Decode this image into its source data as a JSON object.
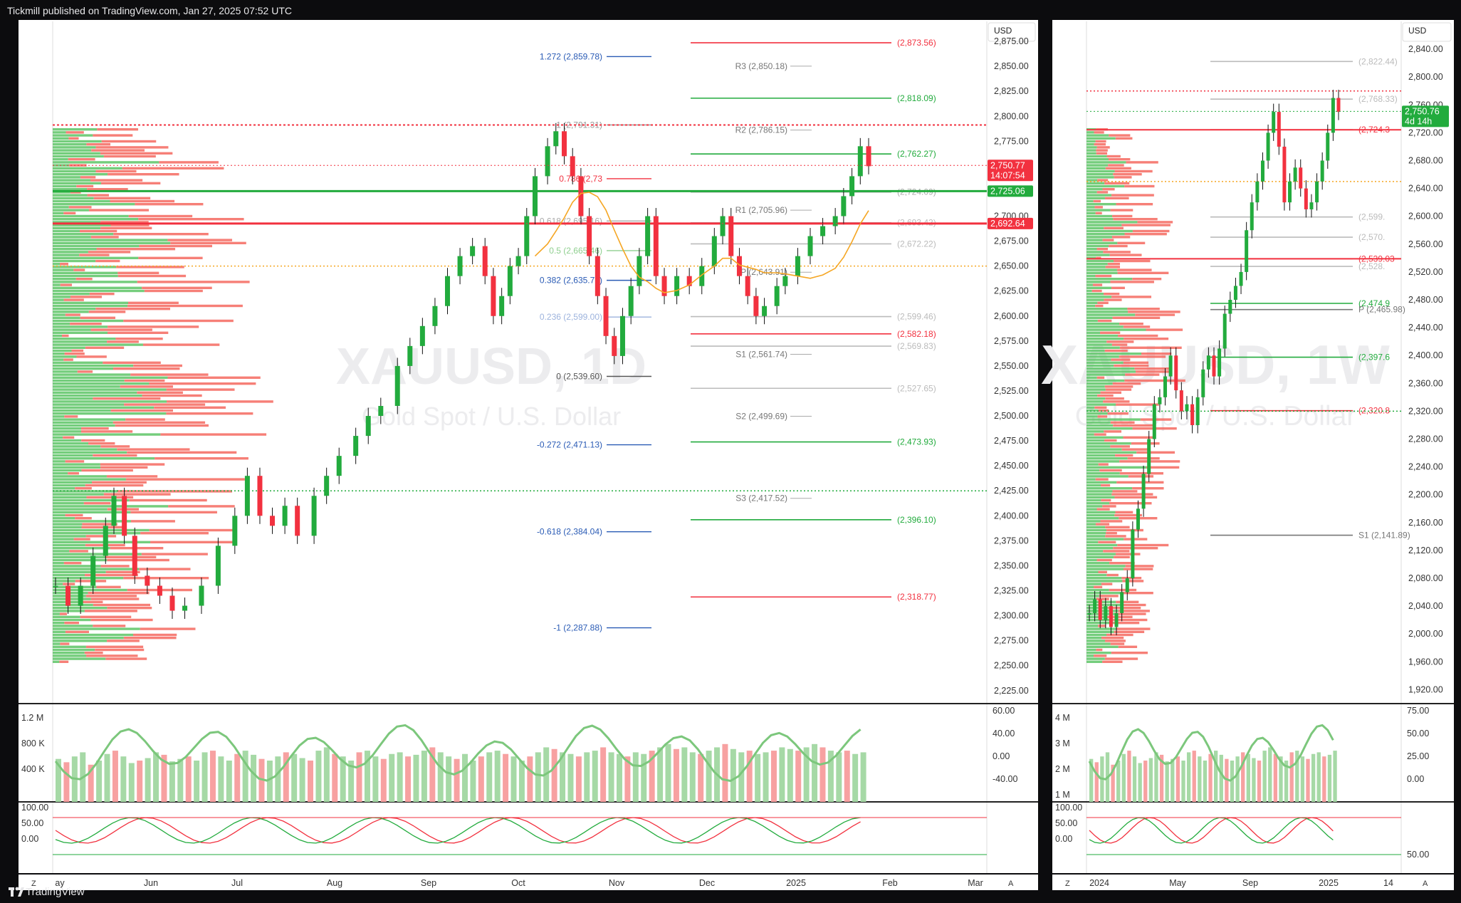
{
  "header": {
    "published": "Tickmill published on TradingView.com, Jan 27, 2025 07:52 UTC"
  },
  "footer": {
    "brand": "TradingView"
  },
  "colors": {
    "up": "#22ab3d",
    "down": "#f2313f",
    "fib": "#2a5bb5",
    "pivot": "#777777",
    "ma": "#f5a623"
  },
  "chart_data": [
    {
      "type": "line",
      "name": "left-daily",
      "watermark": {
        "symbol": "XAUUSD, 1D",
        "desc": "Gold Spot / U.S. Dollar"
      },
      "currency": "USD",
      "ylim": [
        2212,
        2895
      ],
      "y_ticks": [
        "2,875.00",
        "2,850.00",
        "2,825.00",
        "2,800.00",
        "2,775.00",
        "2,750.00",
        "2,725.00",
        "2,700.00",
        "2,675.00",
        "2,650.00",
        "2,625.00",
        "2,600.00",
        "2,575.00",
        "2,550.00",
        "2,525.00",
        "2,500.00",
        "2,475.00",
        "2,450.00",
        "2,425.00",
        "2,400.00",
        "2,375.00",
        "2,350.00",
        "2,325.00",
        "2,300.00",
        "2,275.00",
        "2,250.00",
        "2,225.00"
      ],
      "x_ticks": [
        "ay",
        "Jun",
        "Jul",
        "Aug",
        "Sep",
        "Oct",
        "Nov",
        "Dec",
        "2025",
        "Feb",
        "Mar"
      ],
      "price_tags": [
        {
          "label": "2,750.77",
          "sub": "14:07:54",
          "value": 2750.77,
          "color": "#f2313f"
        },
        {
          "label": "2,725.06",
          "value": 2725.06,
          "color": "#22ab3d"
        },
        {
          "label": "2,692.64",
          "value": 2692.64,
          "color": "#f2313f"
        }
      ],
      "fib_levels": [
        {
          "label": "1.272 (2,859.78)",
          "value": 2859.78,
          "color": "#2a5bb5"
        },
        {
          "label": "1 (2,791.31)",
          "value": 2791.31,
          "color": "#999999"
        },
        {
          "label": "0.786 (2,73",
          "value": 2737.5,
          "color": "#f2313f"
        },
        {
          "label": "0.618 (2,695.16)",
          "value": 2695.16,
          "color": "#aaaaaa"
        },
        {
          "label": "0.5 (2,665.46)",
          "value": 2665.46,
          "color": "#8fcf8f"
        },
        {
          "label": "0.382 (2,635.75)",
          "value": 2635.75,
          "color": "#2a5bb5"
        },
        {
          "label": "0.236 (2,599.00)",
          "value": 2599.0,
          "color": "#9db3dd"
        },
        {
          "label": "0 (2,539.60)",
          "value": 2539.6,
          "color": "#555555"
        },
        {
          "label": "-0.272 (2,471.13)",
          "value": 2471.13,
          "color": "#2a5bb5"
        },
        {
          "label": "-0.618 (2,384.04)",
          "value": 2384.04,
          "color": "#2a5bb5"
        },
        {
          "label": "-1 (2,287.88)",
          "value": 2287.88,
          "color": "#2a5bb5"
        }
      ],
      "pivots": [
        {
          "label": "R3 (2,850.18)",
          "value": 2850.18
        },
        {
          "label": "R2 (2,786.15)",
          "value": 2786.15
        },
        {
          "label": "R1 (2,705.96)",
          "value": 2705.96
        },
        {
          "label": "P (2,643.91)",
          "value": 2643.91
        },
        {
          "label": "S1 (2,561.74)",
          "value": 2561.74
        },
        {
          "label": "S2 (2,499.69)",
          "value": 2499.69
        },
        {
          "label": "S3 (2,417.52)",
          "value": 2417.52
        }
      ],
      "right_levels": [
        {
          "label": "(2,873.56)",
          "value": 2873.56,
          "color": "#f2313f"
        },
        {
          "label": "(2,818.09)",
          "value": 2818.09,
          "color": "#22ab3d"
        },
        {
          "label": "(2,762.27)",
          "value": 2762.27,
          "color": "#22ab3d"
        },
        {
          "label": "(2,724.09)",
          "value": 2724.09,
          "color": "#aaaaaa"
        },
        {
          "label": "(2,693.42)",
          "value": 2693.42,
          "color": "#bbbbbb"
        },
        {
          "label": "(2,672.22)",
          "value": 2672.22,
          "color": "#bbbbbb"
        },
        {
          "label": "(2,599.46)",
          "value": 2599.46,
          "color": "#bbbbbb"
        },
        {
          "label": "(2,582.18)",
          "value": 2582.18,
          "color": "#f2313f"
        },
        {
          "label": "(2,569.83)",
          "value": 2569.83,
          "color": "#bbbbbb"
        },
        {
          "label": "(2,527.65)",
          "value": 2527.65,
          "color": "#bbbbbb"
        },
        {
          "label": "(2,473.93)",
          "value": 2473.93,
          "color": "#22ab3d"
        },
        {
          "label": "(2,396.10)",
          "value": 2396.1,
          "color": "#22ab3d"
        },
        {
          "label": "(2,318.77)",
          "value": 2318.77,
          "color": "#f2313f"
        }
      ],
      "close_path": [
        [
          0,
          2330
        ],
        [
          6,
          2310
        ],
        [
          12,
          2330
        ],
        [
          18,
          2360
        ],
        [
          24,
          2390
        ],
        [
          28,
          2420
        ],
        [
          33,
          2380
        ],
        [
          38,
          2340
        ],
        [
          44,
          2330
        ],
        [
          50,
          2320
        ],
        [
          56,
          2305
        ],
        [
          62,
          2310
        ],
        [
          70,
          2330
        ],
        [
          78,
          2370
        ],
        [
          86,
          2400
        ],
        [
          92,
          2440
        ],
        [
          98,
          2400
        ],
        [
          104,
          2390
        ],
        [
          110,
          2410
        ],
        [
          116,
          2380
        ],
        [
          124,
          2420
        ],
        [
          130,
          2440
        ],
        [
          136,
          2460
        ],
        [
          144,
          2480
        ],
        [
          150,
          2500
        ],
        [
          156,
          2510
        ],
        [
          164,
          2550
        ],
        [
          170,
          2570
        ],
        [
          176,
          2590
        ],
        [
          182,
          2610
        ],
        [
          188,
          2640
        ],
        [
          194,
          2660
        ],
        [
          200,
          2670
        ],
        [
          206,
          2640
        ],
        [
          210,
          2600
        ],
        [
          214,
          2620
        ],
        [
          218,
          2650
        ],
        [
          222,
          2660
        ],
        [
          226,
          2700
        ],
        [
          230,
          2740
        ],
        [
          236,
          2770
        ],
        [
          240,
          2785
        ],
        [
          244,
          2760
        ],
        [
          248,
          2740
        ],
        [
          252,
          2700
        ],
        [
          256,
          2660
        ],
        [
          260,
          2620
        ],
        [
          264,
          2580
        ],
        [
          268,
          2560
        ],
        [
          272,
          2600
        ],
        [
          276,
          2630
        ],
        [
          280,
          2660
        ],
        [
          284,
          2700
        ],
        [
          288,
          2640
        ],
        [
          292,
          2620
        ],
        [
          298,
          2640
        ],
        [
          304,
          2630
        ],
        [
          310,
          2650
        ],
        [
          316,
          2680
        ],
        [
          320,
          2700
        ],
        [
          324,
          2660
        ],
        [
          328,
          2640
        ],
        [
          332,
          2620
        ],
        [
          336,
          2600
        ],
        [
          340,
          2610
        ],
        [
          346,
          2630
        ],
        [
          350,
          2640
        ],
        [
          356,
          2660
        ],
        [
          362,
          2680
        ],
        [
          368,
          2690
        ],
        [
          374,
          2700
        ],
        [
          378,
          2720
        ],
        [
          382,
          2740
        ],
        [
          386,
          2770
        ],
        [
          390,
          2750
        ]
      ],
      "volume": [
        0.52,
        0.48,
        0.55,
        0.6,
        0.45,
        0.5,
        0.58,
        0.62,
        0.55,
        0.47,
        0.5,
        0.53,
        0.6,
        0.57,
        0.49,
        0.52,
        0.55,
        0.5,
        0.6,
        0.62,
        0.55,
        0.5,
        0.58,
        0.62,
        0.57,
        0.52,
        0.5,
        0.55,
        0.6,
        0.58,
        0.53,
        0.5,
        0.62,
        0.66,
        0.58,
        0.55,
        0.5,
        0.6,
        0.62,
        0.55,
        0.52,
        0.58,
        0.6,
        0.55,
        0.57,
        0.62,
        0.66,
        0.6,
        0.55,
        0.52,
        0.58,
        0.5,
        0.55,
        0.6,
        0.62,
        0.58,
        0.55,
        0.5,
        0.55,
        0.6,
        0.66,
        0.64,
        0.6,
        0.58,
        0.55,
        0.6,
        0.62,
        0.66,
        0.6,
        0.58,
        0.55,
        0.6,
        0.58,
        0.62,
        0.66,
        0.7,
        0.64,
        0.66,
        0.6,
        0.58,
        0.62,
        0.66,
        0.7,
        0.64,
        0.6,
        0.62,
        0.58,
        0.6,
        0.62,
        0.66,
        0.64,
        0.62,
        0.66,
        0.7,
        0.66,
        0.62,
        0.6,
        0.62,
        0.58,
        0.6
      ],
      "volume_axis": [
        "1.2 M",
        "800 K",
        "400 K"
      ],
      "osc_axis": [
        "60.00",
        "40.00",
        "0.00",
        "-40.00"
      ],
      "stoch_axis": [
        "100.00",
        "50.00",
        "0.00"
      ]
    },
    {
      "type": "line",
      "name": "right-weekly",
      "watermark": {
        "symbol": "XAUUSD, 1W",
        "desc": "Gold Spot / U.S. Dollar"
      },
      "currency": "USD",
      "ylim": [
        1900,
        2880
      ],
      "y_ticks": [
        "2,840.00",
        "2,800.00",
        "2,760.00",
        "2,720.00",
        "2,680.00",
        "2,640.00",
        "2,600.00",
        "2,560.00",
        "2,520.00",
        "2,480.00",
        "2,440.00",
        "2,400.00",
        "2,360.00",
        "2,320.00",
        "2,280.00",
        "2,240.00",
        "2,200.00",
        "2,160.00",
        "2,120.00",
        "2,080.00",
        "2,040.00",
        "2,000.00",
        "1,960.00",
        "1,920.00"
      ],
      "x_ticks": [
        "2024",
        "May",
        "Sep",
        "2025",
        "14"
      ],
      "price_tags": [
        {
          "label": "2,750.76",
          "sub": "4d 14h",
          "value": 2750.76,
          "color": "#22ab3d"
        }
      ],
      "levels": [
        {
          "label": "(2,822.44)",
          "value": 2822.44,
          "color": "#bbbbbb"
        },
        {
          "label": "(2,768.33)",
          "value": 2768.33,
          "color": "#bbbbbb"
        },
        {
          "label": "(2,724.3",
          "value": 2724.3,
          "color": "#f2313f"
        },
        {
          "label": "(2,599.",
          "value": 2599.0,
          "color": "#bbbbbb"
        },
        {
          "label": "(2,570.",
          "value": 2570.0,
          "color": "#bbbbbb"
        },
        {
          "label": "(2,539.03",
          "value": 2539.03,
          "color": "#f2313f"
        },
        {
          "label": "(2,528.",
          "value": 2528.0,
          "color": "#bbbbbb"
        },
        {
          "label": "(2,474.9",
          "value": 2474.9,
          "color": "#22ab3d"
        },
        {
          "label": "P (2,465.98)",
          "value": 2465.98,
          "color": "#777777"
        },
        {
          "label": "(2,397.6",
          "value": 2397.6,
          "color": "#22ab3d"
        },
        {
          "label": "(2,320.8",
          "value": 2320.8,
          "color": "#f2313f"
        },
        {
          "label": "S1 (2,141.89)",
          "value": 2141.89,
          "color": "#777777"
        }
      ],
      "close_path": [
        [
          0,
          2030
        ],
        [
          5,
          2050
        ],
        [
          10,
          2020
        ],
        [
          15,
          2040
        ],
        [
          20,
          2010
        ],
        [
          25,
          2030
        ],
        [
          30,
          2060
        ],
        [
          35,
          2080
        ],
        [
          40,
          2150
        ],
        [
          45,
          2180
        ],
        [
          50,
          2230
        ],
        [
          55,
          2280
        ],
        [
          60,
          2330
        ],
        [
          65,
          2340
        ],
        [
          70,
          2370
        ],
        [
          75,
          2400
        ],
        [
          80,
          2350
        ],
        [
          85,
          2320
        ],
        [
          90,
          2330
        ],
        [
          95,
          2300
        ],
        [
          100,
          2340
        ],
        [
          105,
          2380
        ],
        [
          110,
          2400
        ],
        [
          115,
          2370
        ],
        [
          120,
          2410
        ],
        [
          125,
          2460
        ],
        [
          130,
          2480
        ],
        [
          135,
          2500
        ],
        [
          140,
          2520
        ],
        [
          145,
          2580
        ],
        [
          150,
          2620
        ],
        [
          155,
          2650
        ],
        [
          160,
          2680
        ],
        [
          165,
          2720
        ],
        [
          170,
          2750
        ],
        [
          175,
          2700
        ],
        [
          180,
          2620
        ],
        [
          185,
          2650
        ],
        [
          190,
          2670
        ],
        [
          195,
          2640
        ],
        [
          200,
          2610
        ],
        [
          205,
          2620
        ],
        [
          210,
          2650
        ],
        [
          215,
          2680
        ],
        [
          220,
          2720
        ],
        [
          225,
          2770
        ],
        [
          230,
          2750
        ]
      ],
      "volume_axis": [
        "4 M",
        "3 M",
        "2 M",
        "1 M"
      ],
      "osc_axis": [
        "75.00",
        "50.00",
        "25.00",
        "0.00"
      ],
      "stoch_axis": [
        "100.00",
        "50.00",
        "0.00",
        "50.00"
      ]
    }
  ]
}
